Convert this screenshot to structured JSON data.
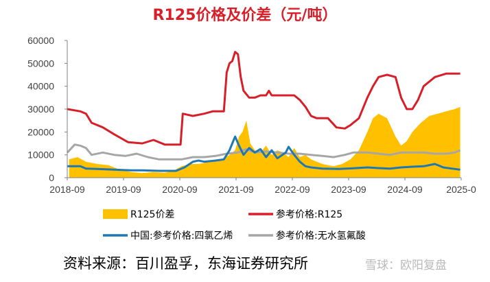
{
  "title": "R125价格及价差（元/吨）",
  "source": "资料来源：百川盈孚，东海证券研究所",
  "watermark": "雪球：欧阳复盘",
  "chart_data": {
    "type": "line",
    "title": "R125价格及价差（元/吨）",
    "ylim": [
      0,
      60000
    ],
    "y_ticks": [
      0,
      10000,
      20000,
      30000,
      40000,
      50000,
      60000
    ],
    "x_range": [
      2018.667,
      2025.667
    ],
    "x_ticks": [
      {
        "x": 2018.667,
        "label": "2018-09"
      },
      {
        "x": 2019.667,
        "label": "2019-09"
      },
      {
        "x": 2020.667,
        "label": "2020-09"
      },
      {
        "x": 2021.667,
        "label": "2021-09"
      },
      {
        "x": 2022.667,
        "label": "2022-09"
      },
      {
        "x": 2023.667,
        "label": "2023-09"
      },
      {
        "x": 2024.667,
        "label": "2024-09"
      },
      {
        "x": 2025.667,
        "label": "2025-0"
      }
    ],
    "grid": false,
    "legend_position": "bottom",
    "colors": {
      "area": "#ffc000",
      "r125": "#d81e29",
      "tfe": "#1f77b4",
      "tfa": "#a6a6a6"
    },
    "series": [
      {
        "name": "R125价差",
        "kind": "area",
        "color": "#ffc000",
        "points": [
          [
            2018.7,
            8000
          ],
          [
            2018.85,
            9000
          ],
          [
            2019.0,
            7000
          ],
          [
            2019.2,
            6000
          ],
          [
            2019.4,
            5500
          ],
          [
            2019.6,
            3500
          ],
          [
            2019.8,
            2500
          ],
          [
            2020.0,
            2000
          ],
          [
            2020.2,
            2500
          ],
          [
            2020.4,
            2200
          ],
          [
            2020.55,
            3000
          ],
          [
            2020.7,
            5000
          ],
          [
            2020.85,
            6000
          ],
          [
            2021.0,
            6000
          ],
          [
            2021.2,
            7000
          ],
          [
            2021.4,
            8000
          ],
          [
            2021.55,
            10000
          ],
          [
            2021.65,
            12000
          ],
          [
            2021.72,
            18000
          ],
          [
            2021.78,
            20000
          ],
          [
            2021.85,
            25000
          ],
          [
            2021.92,
            15000
          ],
          [
            2022.0,
            12000
          ],
          [
            2022.1,
            11000
          ],
          [
            2022.2,
            14000
          ],
          [
            2022.3,
            10000
          ],
          [
            2022.4,
            12000
          ],
          [
            2022.5,
            11000
          ],
          [
            2022.6,
            9000
          ],
          [
            2022.7,
            13000
          ],
          [
            2022.8,
            9000
          ],
          [
            2022.9,
            10000
          ],
          [
            2023.0,
            8000
          ],
          [
            2023.2,
            6000
          ],
          [
            2023.4,
            5000
          ],
          [
            2023.55,
            6000
          ],
          [
            2023.7,
            8000
          ],
          [
            2023.85,
            12000
          ],
          [
            2024.0,
            20000
          ],
          [
            2024.1,
            26000
          ],
          [
            2024.2,
            28000
          ],
          [
            2024.35,
            26000
          ],
          [
            2024.5,
            18000
          ],
          [
            2024.6,
            14000
          ],
          [
            2024.7,
            16000
          ],
          [
            2024.8,
            20000
          ],
          [
            2024.95,
            24000
          ],
          [
            2025.1,
            27000
          ],
          [
            2025.25,
            28000
          ],
          [
            2025.4,
            29000
          ],
          [
            2025.55,
            30000
          ],
          [
            2025.65,
            31000
          ]
        ]
      },
      {
        "name": "参考价格:R125",
        "kind": "line",
        "color": "#d81e29",
        "points": [
          [
            2018.67,
            30000
          ],
          [
            2018.9,
            29000
          ],
          [
            2019.0,
            28000
          ],
          [
            2019.1,
            24000
          ],
          [
            2019.3,
            22000
          ],
          [
            2019.5,
            19000
          ],
          [
            2019.75,
            15500
          ],
          [
            2020.0,
            15000
          ],
          [
            2020.2,
            16500
          ],
          [
            2020.4,
            14500
          ],
          [
            2020.68,
            14500
          ],
          [
            2020.72,
            28000
          ],
          [
            2020.9,
            27000
          ],
          [
            2021.1,
            28000
          ],
          [
            2021.25,
            29000
          ],
          [
            2021.35,
            29000
          ],
          [
            2021.45,
            29000
          ],
          [
            2021.5,
            46000
          ],
          [
            2021.55,
            50000
          ],
          [
            2021.6,
            51000
          ],
          [
            2021.65,
            55000
          ],
          [
            2021.7,
            54000
          ],
          [
            2021.75,
            44000
          ],
          [
            2021.8,
            38000
          ],
          [
            2021.9,
            35000
          ],
          [
            2022.0,
            35000
          ],
          [
            2022.1,
            36000
          ],
          [
            2022.2,
            36000
          ],
          [
            2022.25,
            38000
          ],
          [
            2022.3,
            36000
          ],
          [
            2022.5,
            36000
          ],
          [
            2022.7,
            36000
          ],
          [
            2022.8,
            34000
          ],
          [
            2022.9,
            31000
          ],
          [
            2023.0,
            27000
          ],
          [
            2023.1,
            26000
          ],
          [
            2023.3,
            26000
          ],
          [
            2023.45,
            22000
          ],
          [
            2023.6,
            21500
          ],
          [
            2023.7,
            23000
          ],
          [
            2023.85,
            26000
          ],
          [
            2024.0,
            35000
          ],
          [
            2024.1,
            40000
          ],
          [
            2024.2,
            44000
          ],
          [
            2024.35,
            45000
          ],
          [
            2024.5,
            44000
          ],
          [
            2024.6,
            35000
          ],
          [
            2024.7,
            30000
          ],
          [
            2024.8,
            30000
          ],
          [
            2024.9,
            34000
          ],
          [
            2025.0,
            40000
          ],
          [
            2025.2,
            44000
          ],
          [
            2025.4,
            45500
          ],
          [
            2025.65,
            45500
          ]
        ]
      },
      {
        "name": "中国:参考价格:四氯乙烯",
        "kind": "line",
        "color": "#1f77b4",
        "points": [
          [
            2018.67,
            5000
          ],
          [
            2018.9,
            5000
          ],
          [
            2019.0,
            4000
          ],
          [
            2019.2,
            3800
          ],
          [
            2019.5,
            3500
          ],
          [
            2019.8,
            3200
          ],
          [
            2020.0,
            3200
          ],
          [
            2020.3,
            3000
          ],
          [
            2020.6,
            3000
          ],
          [
            2020.75,
            4500
          ],
          [
            2020.9,
            7000
          ],
          [
            2021.0,
            7500
          ],
          [
            2021.1,
            7000
          ],
          [
            2021.3,
            7500
          ],
          [
            2021.45,
            8000
          ],
          [
            2021.55,
            12000
          ],
          [
            2021.65,
            18000
          ],
          [
            2021.72,
            14000
          ],
          [
            2021.8,
            10000
          ],
          [
            2021.9,
            13000
          ],
          [
            2022.0,
            11000
          ],
          [
            2022.1,
            12500
          ],
          [
            2022.2,
            9000
          ],
          [
            2022.3,
            12000
          ],
          [
            2022.4,
            8500
          ],
          [
            2022.55,
            11000
          ],
          [
            2022.6,
            13500
          ],
          [
            2022.7,
            10000
          ],
          [
            2022.8,
            7000
          ],
          [
            2022.9,
            5000
          ],
          [
            2023.0,
            4500
          ],
          [
            2023.2,
            4000
          ],
          [
            2023.5,
            3800
          ],
          [
            2023.8,
            4200
          ],
          [
            2024.0,
            4500
          ],
          [
            2024.2,
            4200
          ],
          [
            2024.4,
            4000
          ],
          [
            2024.6,
            4500
          ],
          [
            2024.8,
            4800
          ],
          [
            2025.0,
            5000
          ],
          [
            2025.2,
            6000
          ],
          [
            2025.35,
            4500
          ],
          [
            2025.5,
            4000
          ],
          [
            2025.65,
            3500
          ]
        ]
      },
      {
        "name": "参考价格:无水氢氟酸",
        "kind": "line",
        "color": "#a6a6a6",
        "points": [
          [
            2018.67,
            11000
          ],
          [
            2018.8,
            14500
          ],
          [
            2018.9,
            14000
          ],
          [
            2019.0,
            13000
          ],
          [
            2019.1,
            10000
          ],
          [
            2019.3,
            11000
          ],
          [
            2019.5,
            10000
          ],
          [
            2019.7,
            9500
          ],
          [
            2019.9,
            10500
          ],
          [
            2020.1,
            9000
          ],
          [
            2020.3,
            8000
          ],
          [
            2020.5,
            8000
          ],
          [
            2020.7,
            8000
          ],
          [
            2020.9,
            9000
          ],
          [
            2021.1,
            9000
          ],
          [
            2021.3,
            9500
          ],
          [
            2021.5,
            10500
          ],
          [
            2021.7,
            11000
          ],
          [
            2021.85,
            12500
          ],
          [
            2022.0,
            11000
          ],
          [
            2022.2,
            11500
          ],
          [
            2022.4,
            11000
          ],
          [
            2022.6,
            10500
          ],
          [
            2022.8,
            10500
          ],
          [
            2023.0,
            10000
          ],
          [
            2023.2,
            9500
          ],
          [
            2023.4,
            9000
          ],
          [
            2023.6,
            10000
          ],
          [
            2023.75,
            11000
          ],
          [
            2024.0,
            11000
          ],
          [
            2024.2,
            10500
          ],
          [
            2024.4,
            10000
          ],
          [
            2024.6,
            11000
          ],
          [
            2024.8,
            11000
          ],
          [
            2025.0,
            11000
          ],
          [
            2025.2,
            10500
          ],
          [
            2025.4,
            10500
          ],
          [
            2025.55,
            11000
          ],
          [
            2025.65,
            12000
          ]
        ]
      }
    ]
  }
}
